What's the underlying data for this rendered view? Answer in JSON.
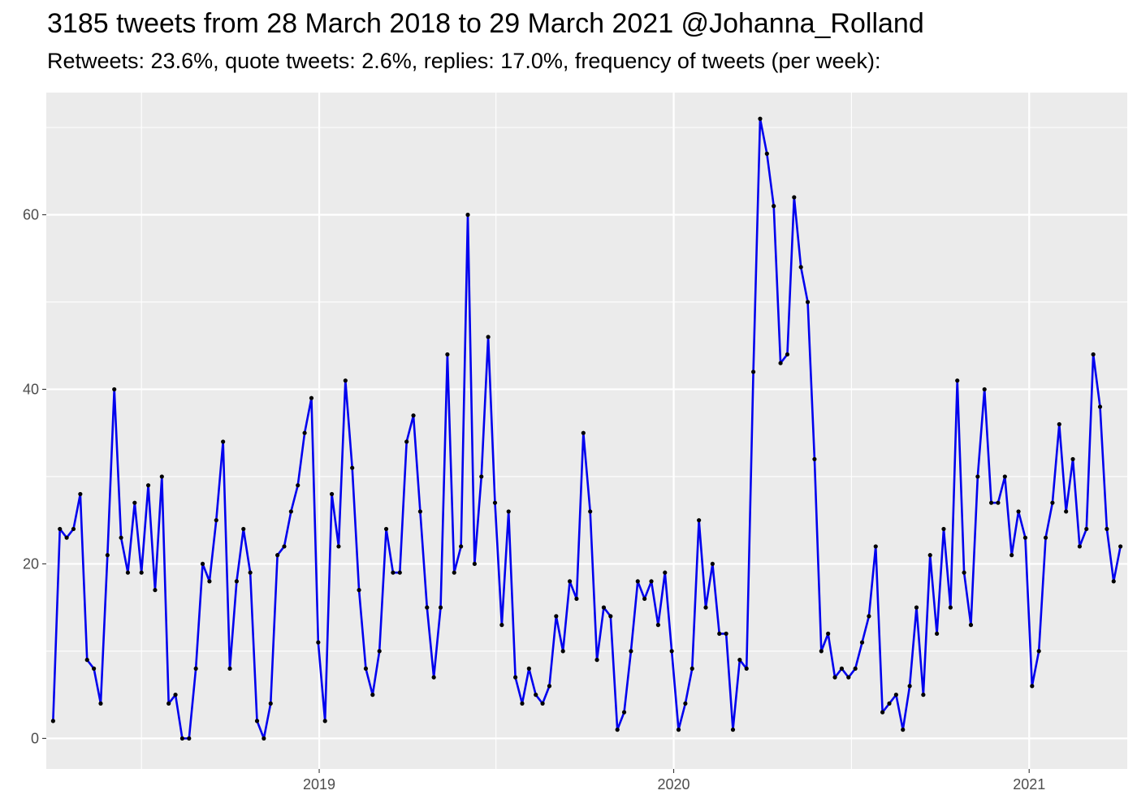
{
  "chart_data": {
    "type": "line",
    "title": "3185 tweets from 28 March 2018 to 29 March 2021 @Johanna_Rolland",
    "subtitle": "Retweets: 23.6%, quote tweets: 2.6%, replies: 17.0%, frequency of tweets (per week):",
    "xlabel": "",
    "ylabel": "",
    "x_start": "2018-04-02",
    "x_step_days": 7,
    "x_ticks": [
      "2019",
      "2020",
      "2021"
    ],
    "y_ticks": [
      0,
      20,
      40,
      60
    ],
    "ylim": [
      -3.5,
      74
    ],
    "grid": true,
    "line_color": "#0000ee",
    "point_color": "#000000",
    "panel_background": "#ebebeb",
    "series": [
      {
        "values": [
          2,
          24,
          23,
          24,
          28,
          9,
          8,
          4,
          21,
          40,
          23,
          19,
          27,
          19,
          29,
          17,
          30,
          4,
          5,
          0,
          0,
          8,
          20,
          18,
          25,
          34,
          8,
          18,
          24,
          19,
          2,
          0,
          4,
          21,
          22,
          26,
          29,
          35,
          39,
          11,
          2,
          28,
          22,
          41,
          31,
          17,
          8,
          5,
          10,
          24,
          19,
          19,
          34,
          37,
          26,
          15,
          7,
          15,
          44,
          19,
          22,
          60,
          20,
          30,
          46,
          27,
          13,
          26,
          7,
          4,
          8,
          5,
          4,
          6,
          14,
          10,
          18,
          16,
          35,
          26,
          9,
          15,
          14,
          1,
          3,
          10,
          18,
          16,
          18,
          13,
          19,
          10,
          1,
          4,
          8,
          25,
          15,
          20,
          12,
          12,
          1,
          9,
          8,
          42,
          71,
          67,
          61,
          43,
          44,
          62,
          54,
          50,
          32,
          10,
          12,
          7,
          8,
          7,
          8,
          11,
          14,
          22,
          3,
          4,
          5,
          1,
          6,
          15,
          5,
          21,
          12,
          24,
          15,
          41,
          19,
          13,
          30,
          40,
          27,
          27,
          30,
          21,
          26,
          23,
          6,
          10,
          23,
          27,
          36,
          26,
          32,
          22,
          24,
          44,
          38,
          24,
          18,
          22
        ]
      }
    ]
  }
}
